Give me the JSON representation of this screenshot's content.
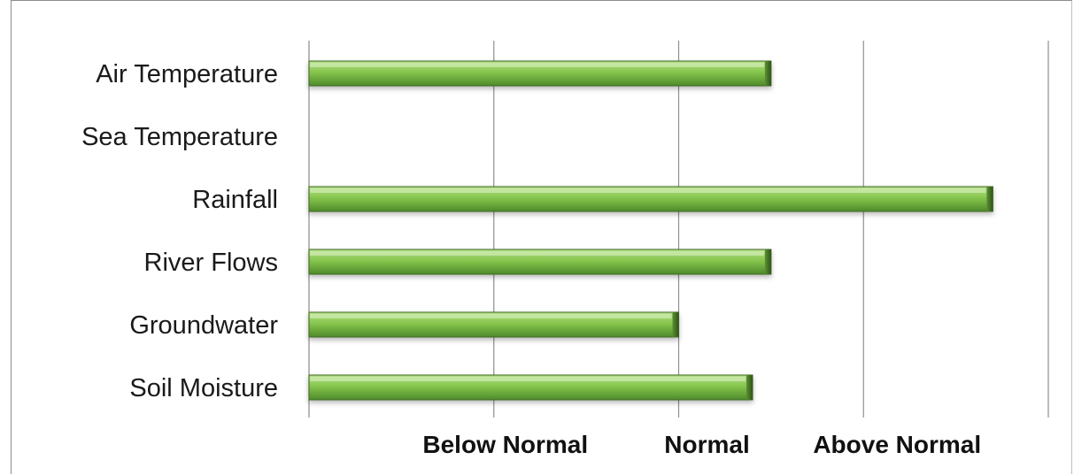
{
  "chart_data": {
    "type": "bar",
    "orientation": "horizontal",
    "categories": [
      "Air Temperature",
      "Sea Temperature",
      "Rainfall",
      "River Flows",
      "Groundwater",
      "Soil Moisture"
    ],
    "values": [
      2.5,
      null,
      3.7,
      2.5,
      2.0,
      2.4
    ],
    "xlim": [
      0,
      4
    ],
    "x_tick_labels": [
      {
        "value": 1,
        "label": "Below Normal"
      },
      {
        "value": 2,
        "label": "Normal"
      },
      {
        "value": 3,
        "label": "Above Normal"
      }
    ],
    "grid": true,
    "bar_color": "#7dc046",
    "bar_edge_color": "#3f6b22"
  }
}
